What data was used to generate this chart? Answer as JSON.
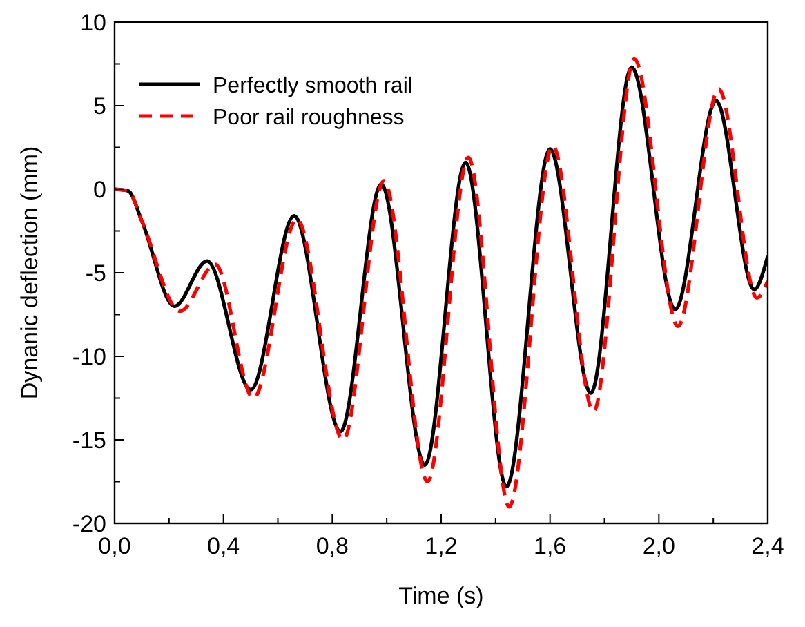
{
  "chart_data": {
    "type": "line",
    "xlabel": "Time (s)",
    "ylabel": "Dynanic deflection (mm)",
    "xlim": [
      0,
      2.4
    ],
    "ylim": [
      -20,
      10
    ],
    "xticks": [
      {
        "value": 0,
        "label": "0,0"
      },
      {
        "value": 0.2,
        "label": null
      },
      {
        "value": 0.4,
        "label": "0,4"
      },
      {
        "value": 0.6,
        "label": null
      },
      {
        "value": 0.8,
        "label": "0,8"
      },
      {
        "value": 1.0,
        "label": null
      },
      {
        "value": 1.2,
        "label": "1,2"
      },
      {
        "value": 1.4,
        "label": null
      },
      {
        "value": 1.6,
        "label": "1,6"
      },
      {
        "value": 1.8,
        "label": null
      },
      {
        "value": 2.0,
        "label": "2,0"
      },
      {
        "value": 2.2,
        "label": null
      },
      {
        "value": 2.4,
        "label": "2,4"
      }
    ],
    "yticks": [
      -20,
      {
        "value": -17.5,
        "label": null
      },
      -15,
      {
        "value": -12.5,
        "label": null
      },
      -10,
      {
        "value": -7.5,
        "label": null
      },
      -5,
      {
        "value": -2.5,
        "label": null
      },
      0,
      {
        "value": 2.5,
        "label": null
      },
      5,
      {
        "value": 7.5,
        "label": null
      },
      10
    ],
    "legend": "top left",
    "grid": false,
    "series": [
      {
        "name": "Perfectly smooth rail",
        "color": "#000000",
        "line_style": "solid",
        "x": [
          0,
          0.05,
          0.1,
          0.22,
          0.34,
          0.5,
          0.66,
          0.83,
          0.98,
          1.14,
          1.29,
          1.44,
          1.6,
          1.75,
          1.9,
          2.06,
          2.21,
          2.35,
          2.4
        ],
        "values": [
          0,
          -0.1,
          -1.9,
          -7,
          -4.3,
          -12,
          -1.6,
          -14.5,
          0.3,
          -16.5,
          1.6,
          -17.8,
          2.4,
          -12.2,
          7.3,
          -7.2,
          5.3,
          -6,
          -4
        ]
      },
      {
        "name": "Poor rail roughness",
        "color": "#ff0000",
        "line_style": "dashed",
        "x": [
          0,
          0.05,
          0.1,
          0.24,
          0.37,
          0.51,
          0.67,
          0.84,
          0.99,
          1.15,
          1.3,
          1.45,
          1.61,
          1.76,
          1.91,
          2.07,
          2.22,
          2.36,
          2.4
        ],
        "values": [
          0,
          -0.1,
          -1.9,
          -7.3,
          -4.5,
          -12.5,
          -1.8,
          -15,
          0.5,
          -17.5,
          1.9,
          -19,
          2.6,
          -13.3,
          7.8,
          -8.2,
          6,
          -6.5,
          -5.5
        ]
      }
    ]
  }
}
